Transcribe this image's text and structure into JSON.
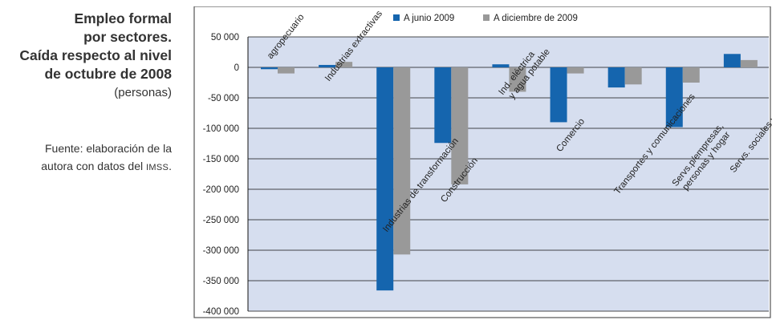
{
  "panel": {
    "title_lines": [
      "Empleo formal",
      "por sectores.",
      "Caída respecto al nivel",
      "de octubre de 2008"
    ],
    "units": "(personas)",
    "source_line1": "Fuente: elaboración de la",
    "source_line2_prefix": "autora con datos del ",
    "source_line2_org": "IMSS",
    "source_line2_suffix": "."
  },
  "chart_data": {
    "type": "bar",
    "title": "Empleo formal por sectores. Caída respecto al nivel de octubre de 2008",
    "ylabel": "(personas)",
    "xlabel": "",
    "ylim": [
      -400000,
      50000
    ],
    "y_ticks": [
      50000,
      0,
      -50000,
      -100000,
      -150000,
      -200000,
      -250000,
      -300000,
      -350000,
      -400000
    ],
    "y_tick_labels": [
      "50 000",
      "0",
      "-50 000",
      "-100 000",
      "-150 000",
      "-200 000",
      "-250 000",
      "-300 000",
      "-350 000",
      "-400 000"
    ],
    "grid": true,
    "legend_position": "top-center",
    "categories": [
      "agropecuario",
      "Industrias extractivas",
      "Industrias de transformación",
      "Construcción",
      "Ind. eléctrica y agua potable",
      "Comercio",
      "Transportes y comunicaciones",
      "Servs.p/empresas, personas y hogar",
      "Servs. sociales y comunales"
    ],
    "category_label_lines": [
      [
        "agropecuario"
      ],
      [
        "Industrias extractivas"
      ],
      [
        "Industrias de transformación"
      ],
      [
        "Construcción"
      ],
      [
        "Ind. eléctrica",
        "y agua potable"
      ],
      [
        "Comercio"
      ],
      [
        "Transportes y comunicaciones"
      ],
      [
        "Servs.p/empresas,",
        "personas y hogar"
      ],
      [
        "Servs. sociales y comunales"
      ]
    ],
    "series": [
      {
        "name": "A junio 2009",
        "color": "#1565ae",
        "values": [
          -3000,
          4000,
          -366000,
          -124000,
          5000,
          -90000,
          -33000,
          -98000,
          22000
        ]
      },
      {
        "name": "A diciembre de 2009",
        "color": "#999999",
        "values": [
          -10000,
          9000,
          -307000,
          -192000,
          -40000,
          -10000,
          -28000,
          -25000,
          12000
        ]
      }
    ],
    "plot_background": "#d6deef",
    "grid_color": "#111111"
  }
}
